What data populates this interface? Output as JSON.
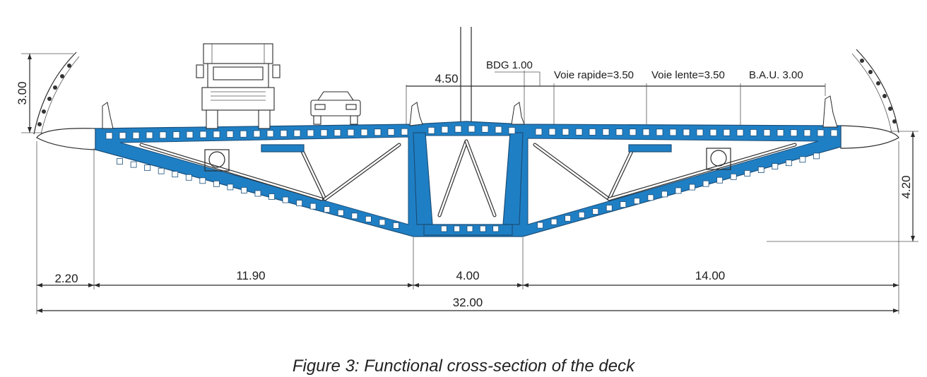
{
  "caption": "Figure 3: Functional cross-section of the deck",
  "labels": {
    "left_height": "3.00",
    "right_height": "4.20",
    "median_width": "4.50",
    "bdg": "BDG 1.00",
    "fast_lane": "Voie rapide=3.50",
    "slow_lane": "Voie lente=3.50",
    "hard_shoulder": "B.A.U. 3.00",
    "cantilever": "2.20",
    "left_span": "11.90",
    "center_box": "4.00",
    "right_span": "14.00",
    "total_width": "32.00"
  },
  "colors": {
    "deck": "#1f7fc4",
    "outline": "#1a4f7a"
  }
}
